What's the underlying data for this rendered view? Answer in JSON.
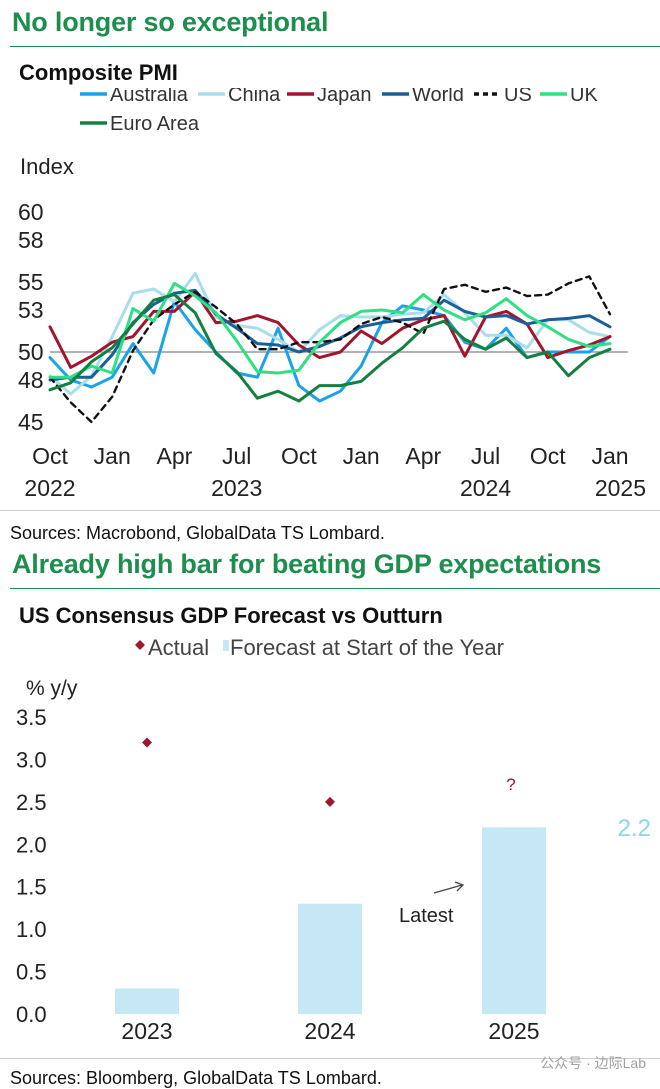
{
  "panel1": {
    "headline": "No longer so exceptional",
    "source": "Sources: Macrobond, GlobalData TS Lombard."
  },
  "panel2": {
    "headline": "Already high bar for beating GDP expectations",
    "source": "Sources: Bloomberg, GlobalData TS Lombard."
  },
  "watermark": "公众号 · 边际Lab",
  "colors": {
    "headline": "#1e8e4e",
    "Australia": "#1aa3e8",
    "China": "#a9dcec",
    "Japan": "#a3142e",
    "World": "#1a5f9a",
    "US": "#111111",
    "UK": "#2ee083",
    "Euro Area": "#148040",
    "bar": "#c6e8f4",
    "actual": "#a3142e",
    "annotation": "#8fd4ec"
  },
  "chart_data": [
    {
      "type": "line",
      "title": "Composite PMI",
      "ylabel": "Index",
      "ylim": [
        45,
        61
      ],
      "yticks": [
        45,
        48,
        50,
        53,
        55,
        58,
        60
      ],
      "ytick_labels": [
        "45",
        "48",
        "50",
        "53",
        "55",
        "58",
        "60"
      ],
      "reference_line": 50,
      "x": [
        "2022-10",
        "2022-11",
        "2022-12",
        "2023-01",
        "2023-02",
        "2023-03",
        "2023-04",
        "2023-05",
        "2023-06",
        "2023-07",
        "2023-08",
        "2023-09",
        "2023-10",
        "2023-11",
        "2023-12",
        "2024-01",
        "2024-02",
        "2024-03",
        "2024-04",
        "2024-05",
        "2024-06",
        "2024-07",
        "2024-08",
        "2024-09",
        "2024-10",
        "2024-11",
        "2024-12",
        "2025-01"
      ],
      "xticks": [
        {
          "month": "Oct",
          "year": "2022",
          "index": 0
        },
        {
          "month": "Jan",
          "year": "",
          "index": 3
        },
        {
          "month": "Apr",
          "year": "",
          "index": 6
        },
        {
          "month": "Jul",
          "year": "2023",
          "index": 9
        },
        {
          "month": "Oct",
          "year": "",
          "index": 12
        },
        {
          "month": "Jan",
          "year": "",
          "index": 15
        },
        {
          "month": "Apr",
          "year": "",
          "index": 18
        },
        {
          "month": "Jul",
          "year": "2024",
          "index": 21
        },
        {
          "month": "Oct",
          "year": "",
          "index": 24
        },
        {
          "month": "Jan",
          "year": "2025",
          "index": 27
        }
      ],
      "series": [
        {
          "name": "Australia",
          "style": "solid",
          "values": [
            49.6,
            48.0,
            47.5,
            48.2,
            50.6,
            48.5,
            53.6,
            51.6,
            50.0,
            48.5,
            48.2,
            51.7,
            47.6,
            46.5,
            47.2,
            49.0,
            52.1,
            53.3,
            53.0,
            52.6,
            50.7,
            50.2,
            51.7,
            49.6,
            50.0,
            50.0,
            50.0,
            51.1
          ]
        },
        {
          "name": "China",
          "style": "solid",
          "values": [
            48.3,
            47.0,
            48.3,
            51.1,
            54.2,
            54.5,
            53.6,
            55.6,
            52.5,
            51.9,
            51.7,
            50.9,
            50.0,
            51.6,
            52.6,
            52.5,
            52.5,
            52.7,
            52.8,
            54.1,
            52.8,
            51.2,
            51.2,
            50.3,
            52.3,
            52.3,
            51.4,
            51.1
          ]
        },
        {
          "name": "Japan",
          "style": "solid",
          "values": [
            51.8,
            48.9,
            49.7,
            50.7,
            51.1,
            52.9,
            52.9,
            54.3,
            52.1,
            52.2,
            52.6,
            52.1,
            50.5,
            49.6,
            50.0,
            51.5,
            50.6,
            51.7,
            52.3,
            52.6,
            49.7,
            52.5,
            52.9,
            52.0,
            49.6,
            50.1,
            50.5,
            51.1
          ]
        },
        {
          "name": "World",
          "style": "solid",
          "values": [
            48.0,
            48.2,
            48.2,
            49.8,
            52.1,
            53.4,
            54.2,
            54.4,
            52.7,
            51.7,
            50.6,
            50.5,
            50.0,
            50.4,
            51.0,
            51.8,
            52.1,
            52.3,
            52.4,
            53.7,
            52.9,
            52.5,
            52.6,
            52.0,
            52.3,
            52.4,
            52.6,
            51.8
          ]
        },
        {
          "name": "US",
          "style": "dashed",
          "values": [
            48.2,
            46.4,
            45.0,
            46.8,
            50.1,
            52.3,
            53.4,
            54.3,
            53.2,
            52.0,
            50.2,
            50.2,
            50.7,
            50.7,
            50.9,
            52.0,
            52.5,
            52.1,
            51.3,
            54.5,
            54.8,
            54.3,
            54.6,
            54.0,
            54.1,
            54.9,
            55.4,
            52.7
          ]
        },
        {
          "name": "UK",
          "style": "solid",
          "values": [
            48.2,
            48.2,
            49.0,
            48.5,
            53.1,
            52.2,
            54.9,
            54.0,
            52.8,
            50.8,
            48.6,
            48.5,
            48.7,
            50.7,
            52.1,
            52.9,
            53.0,
            52.8,
            54.1,
            53.0,
            52.3,
            52.8,
            53.8,
            52.6,
            51.8,
            50.9,
            50.4,
            50.6
          ]
        },
        {
          "name": "Euro Area",
          "style": "solid",
          "values": [
            47.3,
            47.8,
            49.3,
            50.3,
            52.0,
            53.7,
            54.1,
            52.8,
            49.9,
            48.6,
            46.7,
            47.2,
            46.5,
            47.6,
            47.6,
            47.9,
            49.2,
            50.3,
            51.7,
            52.2,
            50.9,
            50.2,
            51.0,
            49.6,
            50.0,
            48.3,
            49.6,
            50.2
          ]
        }
      ]
    },
    {
      "type": "bar",
      "title": "US Consensus GDP Forecast vs Outturn",
      "ylabel": "% y/y",
      "ylim": [
        0,
        3.5
      ],
      "yticks": [
        0.0,
        0.5,
        1.0,
        1.5,
        2.0,
        2.5,
        3.0,
        3.5
      ],
      "ytick_labels": [
        "0.0",
        "0.5",
        "1.0",
        "1.5",
        "2.0",
        "2.5",
        "3.0",
        "3.5"
      ],
      "categories": [
        "2023",
        "2024",
        "2025"
      ],
      "series": [
        {
          "name": "Forecast at Start of the Year",
          "kind": "bar",
          "values": [
            0.3,
            1.3,
            2.2
          ]
        },
        {
          "name": "Actual",
          "kind": "diamond",
          "values": [
            3.2,
            2.5,
            null
          ]
        }
      ],
      "annotations": {
        "unknown_actual": "?",
        "latest_label": "Latest",
        "latest_value": "2.2",
        "arrow": "→"
      }
    }
  ]
}
